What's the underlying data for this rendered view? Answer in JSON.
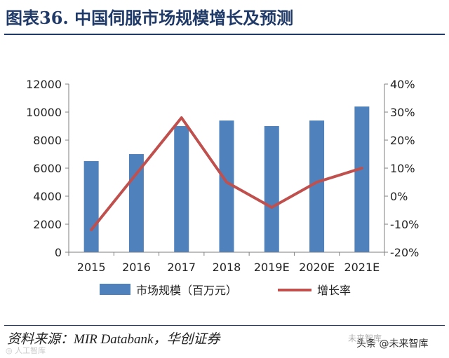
{
  "header": {
    "title": "图表36. 中国伺服市场规模增长及预测"
  },
  "chart_data": {
    "type": "bar+line",
    "categories": [
      "2015",
      "2016",
      "2017",
      "2018",
      "2019E",
      "2020E",
      "2021E"
    ],
    "series": [
      {
        "name": "市场规模（百万元）",
        "type": "bar",
        "axis": "left",
        "color": "#4f81bd",
        "values": [
          6500,
          7000,
          9000,
          9400,
          9000,
          9400,
          10400
        ]
      },
      {
        "name": "增长率",
        "type": "line",
        "axis": "right",
        "color": "#c0504d",
        "values": [
          -12,
          8,
          28,
          5,
          -4,
          5,
          10
        ]
      }
    ],
    "left_axis": {
      "min": 0,
      "max": 12000,
      "step": 2000,
      "tick_labels": [
        "0",
        "2000",
        "4000",
        "6000",
        "8000",
        "10000",
        "12000"
      ]
    },
    "right_axis": {
      "min": -20,
      "max": 40,
      "step": 10,
      "tick_labels": [
        "-20%",
        "-10%",
        "0%",
        "10%",
        "20%",
        "30%",
        "40%"
      ]
    },
    "grid": false,
    "legend_position": "bottom"
  },
  "footer": {
    "source": "资料来源：MIR Databank，华创证券",
    "watermark_left": "◎ 人工智库",
    "watermark_center": "未来智库",
    "watermark_right": "头条 @未来智库"
  }
}
